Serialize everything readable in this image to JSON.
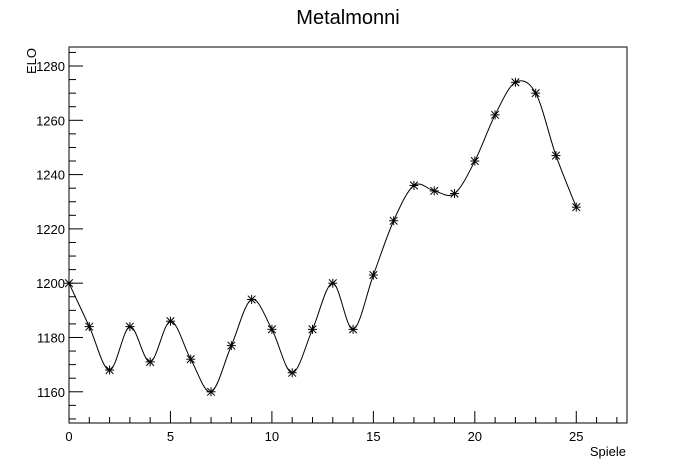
{
  "chart_data": {
    "type": "line",
    "title": "Metalmonni",
    "xlabel": "Spiele",
    "ylabel": "ELO",
    "xlim": [
      0,
      27.5
    ],
    "ylim": [
      1148.5,
      1287
    ],
    "x_ticks": [
      0,
      5,
      10,
      15,
      20,
      25
    ],
    "y_ticks": [
      1160,
      1180,
      1200,
      1220,
      1240,
      1260,
      1280
    ],
    "x_tick_labels": [
      "0",
      "5",
      "10",
      "15",
      "20",
      "25"
    ],
    "y_tick_labels": [
      "1160",
      "1180",
      "1200",
      "1220",
      "1240",
      "1260",
      "1280"
    ],
    "grid": false,
    "marker": "asterisk",
    "smooth": true,
    "series": [
      {
        "x": [
          0,
          1,
          2,
          3,
          4,
          5,
          6,
          7,
          8,
          9,
          10,
          11,
          12,
          13,
          14,
          15,
          16,
          17,
          18,
          19,
          20,
          21,
          22,
          23,
          24,
          25
        ],
        "values": [
          1200,
          1184,
          1168,
          1184,
          1171,
          1186,
          1172,
          1160,
          1177,
          1194,
          1183,
          1167,
          1183,
          1200,
          1183,
          1203,
          1223,
          1236,
          1234,
          1233,
          1245,
          1262,
          1274,
          1270,
          1247,
          1228
        ]
      }
    ],
    "colors": {
      "line": "#000000",
      "marker": "#000000",
      "frame": "#000000"
    }
  }
}
